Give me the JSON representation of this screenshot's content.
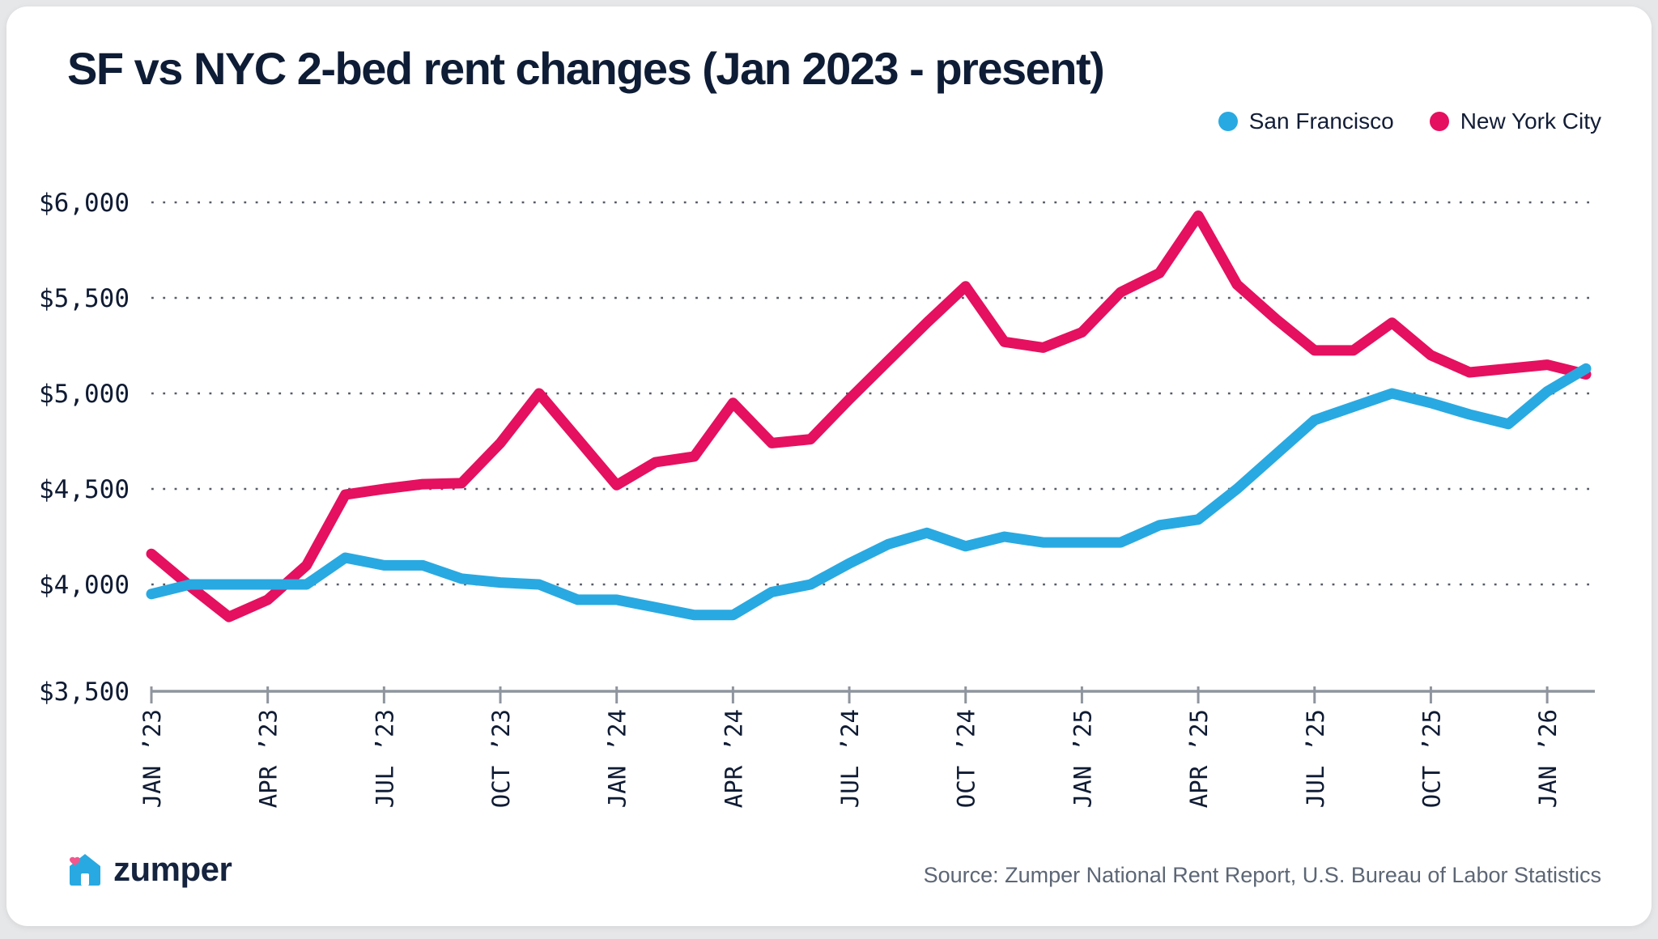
{
  "title": "SF vs NYC 2-bed rent changes (Jan 2023 - present)",
  "legend": [
    {
      "label": "San Francisco",
      "color": "#29a9e1"
    },
    {
      "label": "New York City",
      "color": "#e5105f"
    }
  ],
  "footer": {
    "brand": "zumper",
    "source": "Source: Zumper National Rent Report, U.S. Bureau of Labor Statistics"
  },
  "colors": {
    "sf_blue": "#29a9e1",
    "nyc_pink": "#e5105f",
    "axis_gray": "#8f959e",
    "grid_dot": "#565b66",
    "text_navy": "#0f1b33"
  },
  "chart_data": {
    "type": "line",
    "title": "SF vs NYC 2-bed rent changes (Jan 2023 - present)",
    "ylabel": "",
    "xlabel": "",
    "ylim": [
      3500,
      6000
    ],
    "grid": "dotted horizontal",
    "legend_position": "top-right",
    "y_ticks": [
      {
        "value": 6000,
        "label": "$6,000",
        "gridline": true
      },
      {
        "value": 5500,
        "label": "$5,500",
        "gridline": true
      },
      {
        "value": 5000,
        "label": "$5,000",
        "gridline": true
      },
      {
        "value": 4500,
        "label": "$4,500",
        "gridline": true
      },
      {
        "value": 4000,
        "label": "$4,000",
        "gridline": true
      },
      {
        "value": 3500,
        "label": "$3,500",
        "gridline": false
      }
    ],
    "x_tick_labels": [
      "JAN ’23",
      "APR ’23",
      "JUL ’23",
      "OCT ’23",
      "JAN ’24",
      "APR ’24",
      "JUL ’24",
      "OCT ’24",
      "JAN ’25",
      "APR ’25",
      "JUL ’25",
      "OCT ’25",
      "JAN ’26"
    ],
    "x": [
      "Jan 2023",
      "Feb 2023",
      "Mar 2023",
      "Apr 2023",
      "May 2023",
      "Jun 2023",
      "Jul 2023",
      "Aug 2023",
      "Sep 2023",
      "Oct 2023",
      "Nov 2023",
      "Dec 2023",
      "Jan 2024",
      "Feb 2024",
      "Mar 2024",
      "Apr 2024",
      "May 2024",
      "Jun 2024",
      "Jul 2024",
      "Aug 2024",
      "Sep 2024",
      "Oct 2024",
      "Nov 2024",
      "Dec 2024",
      "Jan 2025",
      "Feb 2025",
      "Mar 2025",
      "Apr 2025",
      "May 2025",
      "Jun 2025",
      "Jul 2025",
      "Aug 2025",
      "Sep 2025",
      "Oct 2025",
      "Nov 2025",
      "Dec 2025",
      "Jan 2026",
      "Feb 2026"
    ],
    "series": [
      {
        "name": "San Francisco",
        "color": "#29a9e1",
        "values": [
          3950,
          4000,
          4000,
          4000,
          4000,
          4140,
          4100,
          4100,
          4030,
          4010,
          4000,
          3920,
          3920,
          3880,
          3840,
          3840,
          3960,
          4000,
          4110,
          4210,
          4270,
          4200,
          4250,
          4220,
          4220,
          4220,
          4310,
          4340,
          4500,
          4680,
          4860,
          4930,
          5000,
          4950,
          4890,
          4840,
          5010,
          5130
        ]
      },
      {
        "name": "New York City",
        "color": "#e5105f",
        "values": [
          4160,
          3990,
          3830,
          3920,
          4100,
          4470,
          4500,
          4525,
          4530,
          4740,
          5000,
          4760,
          4520,
          4640,
          4670,
          4950,
          4740,
          4760,
          4970,
          5170,
          5370,
          5560,
          5270,
          5240,
          5320,
          5530,
          5630,
          5930,
          5570,
          5390,
          5225,
          5225,
          5370,
          5200,
          5110,
          5130,
          5150,
          5100
        ]
      }
    ]
  }
}
